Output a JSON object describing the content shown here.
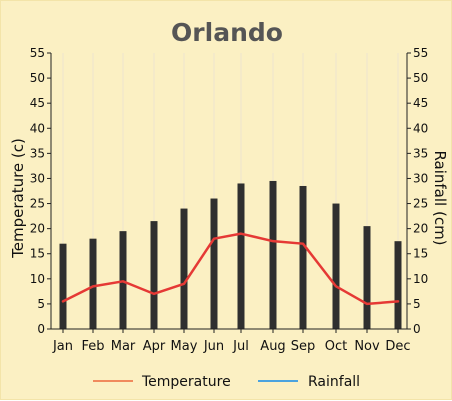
{
  "chart_data": {
    "type": "bar",
    "title": "Orlando",
    "categories": [
      "Jan",
      "Feb",
      "Mar",
      "Apr",
      "May",
      "Jun",
      "Jul",
      "Aug",
      "Sep",
      "Oct",
      "Nov",
      "Dec"
    ],
    "left_axis": {
      "label": "Temperature (c)",
      "ticks": [
        "0",
        "5",
        "10",
        "15",
        "20",
        "25",
        "30",
        "35",
        "40",
        "45",
        "50",
        "55"
      ],
      "range": [
        0,
        55
      ]
    },
    "right_axis": {
      "label": "Rainfall (cm)",
      "ticks": [
        "0",
        "5",
        "10",
        "15",
        "20",
        "25",
        "30",
        "35",
        "40",
        "45",
        "50",
        "55"
      ],
      "range": [
        0,
        55
      ]
    },
    "series": [
      {
        "name": "Temperature",
        "type": "line",
        "axis": "left",
        "color": "#E53935",
        "values": [
          5.5,
          8.5,
          9.5,
          7,
          9,
          18,
          19,
          17.5,
          17,
          8.5,
          5,
          5.5
        ]
      },
      {
        "name": "Rainfall",
        "type": "bar",
        "axis": "right",
        "color": "#2F2F2F",
        "values": [
          17,
          18,
          19.5,
          21.5,
          24,
          26,
          29,
          29.5,
          28.5,
          25,
          20.5,
          17.5
        ]
      }
    ],
    "legend": {
      "position": "bottom",
      "entries": [
        {
          "label": "Temperature",
          "color": "#F08A5D"
        },
        {
          "label": "Rainfall",
          "color": "#4AA3DF"
        }
      ]
    },
    "grid": {
      "horizontal": false,
      "vertical": true,
      "color": "#ECE5CF"
    },
    "background": "#FBF0C3"
  }
}
